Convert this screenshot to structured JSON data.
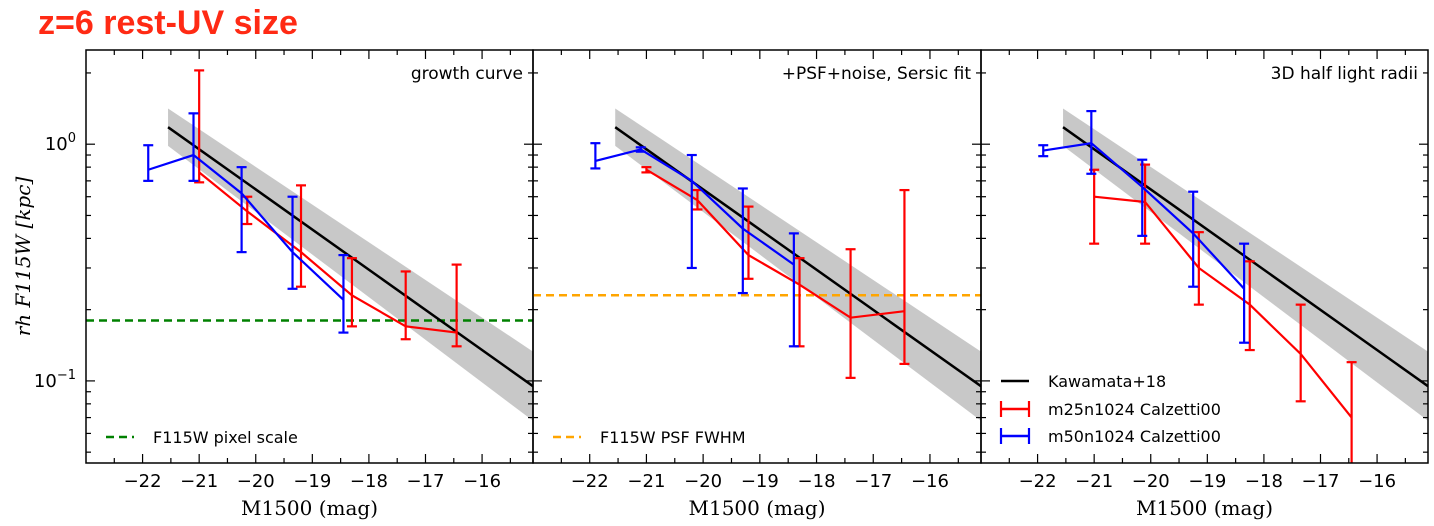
{
  "title": "z=6 rest-UV size",
  "colors": {
    "title": "#ff2a14",
    "red": "#ff0000",
    "blue": "#0000ff",
    "black": "#000000",
    "band": "#c8c8c8",
    "green": "#008000",
    "orange": "#ffa500"
  },
  "chart_data": [
    {
      "type": "line",
      "annotation": "growth curve",
      "xlabel": "M1500 (mag)",
      "ylabel": "rh F115W [kpc]",
      "yscale": "log",
      "xlim": [
        -23,
        -15.1
      ],
      "ylim": [
        0.045,
        2.5
      ],
      "xticks": [
        -22,
        -21,
        -20,
        -19,
        -18,
        -17,
        -16
      ],
      "yticklabels": [
        "10^-1",
        "10^0"
      ],
      "kawamata": {
        "x": [
          -21.55,
          -15.1
        ],
        "y": [
          1.18,
          0.095
        ],
        "band": [
          1.2,
          1.4
        ]
      },
      "series": [
        {
          "name": "m25n1024 Calzetti00",
          "color": "red",
          "x": [
            -21.0,
            -20.15,
            -19.2,
            -18.3,
            -17.35,
            -16.45
          ],
          "y": [
            0.76,
            0.52,
            0.35,
            0.23,
            0.17,
            0.16
          ],
          "ylo": [
            0.69,
            0.46,
            0.25,
            0.17,
            0.15,
            0.14
          ],
          "yhi": [
            2.05,
            0.6,
            0.67,
            0.33,
            0.29,
            0.31
          ]
        },
        {
          "name": "m50n1024 Calzetti00",
          "color": "blue",
          "x": [
            -21.9,
            -21.1,
            -20.25,
            -19.35,
            -18.45
          ],
          "y": [
            0.78,
            0.9,
            0.62,
            0.35,
            0.22
          ],
          "ylo": [
            0.7,
            0.7,
            0.35,
            0.245,
            0.16
          ],
          "yhi": [
            0.99,
            1.35,
            0.8,
            0.6,
            0.34
          ]
        }
      ],
      "hline": {
        "label": "F115W pixel scale",
        "y": 0.18,
        "color": "green"
      }
    },
    {
      "type": "line",
      "annotation": "+PSF+noise, Sersic fit",
      "xlabel": "M1500 (mag)",
      "yscale": "log",
      "xlim": [
        -23,
        -15.1
      ],
      "ylim": [
        0.045,
        2.5
      ],
      "xticks": [
        -22,
        -21,
        -20,
        -19,
        -18,
        -17,
        -16
      ],
      "kawamata": {
        "x": [
          -21.55,
          -15.1
        ],
        "y": [
          1.18,
          0.095
        ],
        "band": [
          1.2,
          1.4
        ]
      },
      "series": [
        {
          "name": "m25n1024 Calzetti00",
          "color": "red",
          "x": [
            -21.0,
            -20.1,
            -19.2,
            -18.3,
            -17.4,
            -16.45
          ],
          "y": [
            0.78,
            0.58,
            0.34,
            0.255,
            0.185,
            0.197
          ],
          "ylo": [
            0.76,
            0.53,
            0.27,
            0.14,
            0.103,
            0.118
          ],
          "yhi": [
            0.8,
            0.64,
            0.545,
            0.33,
            0.36,
            0.64
          ]
        },
        {
          "name": "m50n1024 Calzetti00",
          "color": "blue",
          "x": [
            -21.9,
            -21.1,
            -20.2,
            -19.3,
            -18.4
          ],
          "y": [
            0.85,
            0.95,
            0.7,
            0.44,
            0.31
          ],
          "ylo": [
            0.79,
            0.93,
            0.3,
            0.235,
            0.14
          ],
          "yhi": [
            1.01,
            0.97,
            0.9,
            0.65,
            0.42
          ]
        }
      ],
      "hline": {
        "label": "F115W PSF FWHM",
        "y": 0.23,
        "color": "orange"
      }
    },
    {
      "type": "line",
      "annotation": "3D half light radii",
      "xlabel": "M1500 (mag)",
      "yscale": "log",
      "xlim": [
        -23,
        -15.1
      ],
      "ylim": [
        0.045,
        2.5
      ],
      "xticks": [
        -22,
        -21,
        -20,
        -19,
        -18,
        -17,
        -16
      ],
      "kawamata": {
        "name": "Kawamata+18",
        "x": [
          -21.55,
          -15.1
        ],
        "y": [
          1.18,
          0.095
        ],
        "band": [
          1.2,
          1.4
        ]
      },
      "series": [
        {
          "name": "m25n1024 Calzetti00",
          "color": "red",
          "x": [
            -21.0,
            -20.1,
            -19.15,
            -18.25,
            -17.35,
            -16.45
          ],
          "y": [
            0.6,
            0.57,
            0.3,
            0.21,
            0.13,
            0.07
          ],
          "ylo": [
            0.38,
            0.38,
            0.21,
            0.135,
            0.082,
            0.044
          ],
          "yhi": [
            0.78,
            0.82,
            0.425,
            0.32,
            0.21,
            0.12
          ]
        },
        {
          "name": "m50n1024 Calzetti00",
          "color": "blue",
          "x": [
            -21.9,
            -21.05,
            -20.15,
            -19.25,
            -18.35
          ],
          "y": [
            0.94,
            1.01,
            0.66,
            0.42,
            0.245
          ],
          "ylo": [
            0.89,
            0.75,
            0.41,
            0.25,
            0.145
          ],
          "yhi": [
            0.99,
            1.38,
            0.86,
            0.63,
            0.38
          ]
        }
      ],
      "legend": [
        "Kawamata+18",
        "m25n1024 Calzetti00",
        "m50n1024 Calzetti00"
      ]
    }
  ]
}
